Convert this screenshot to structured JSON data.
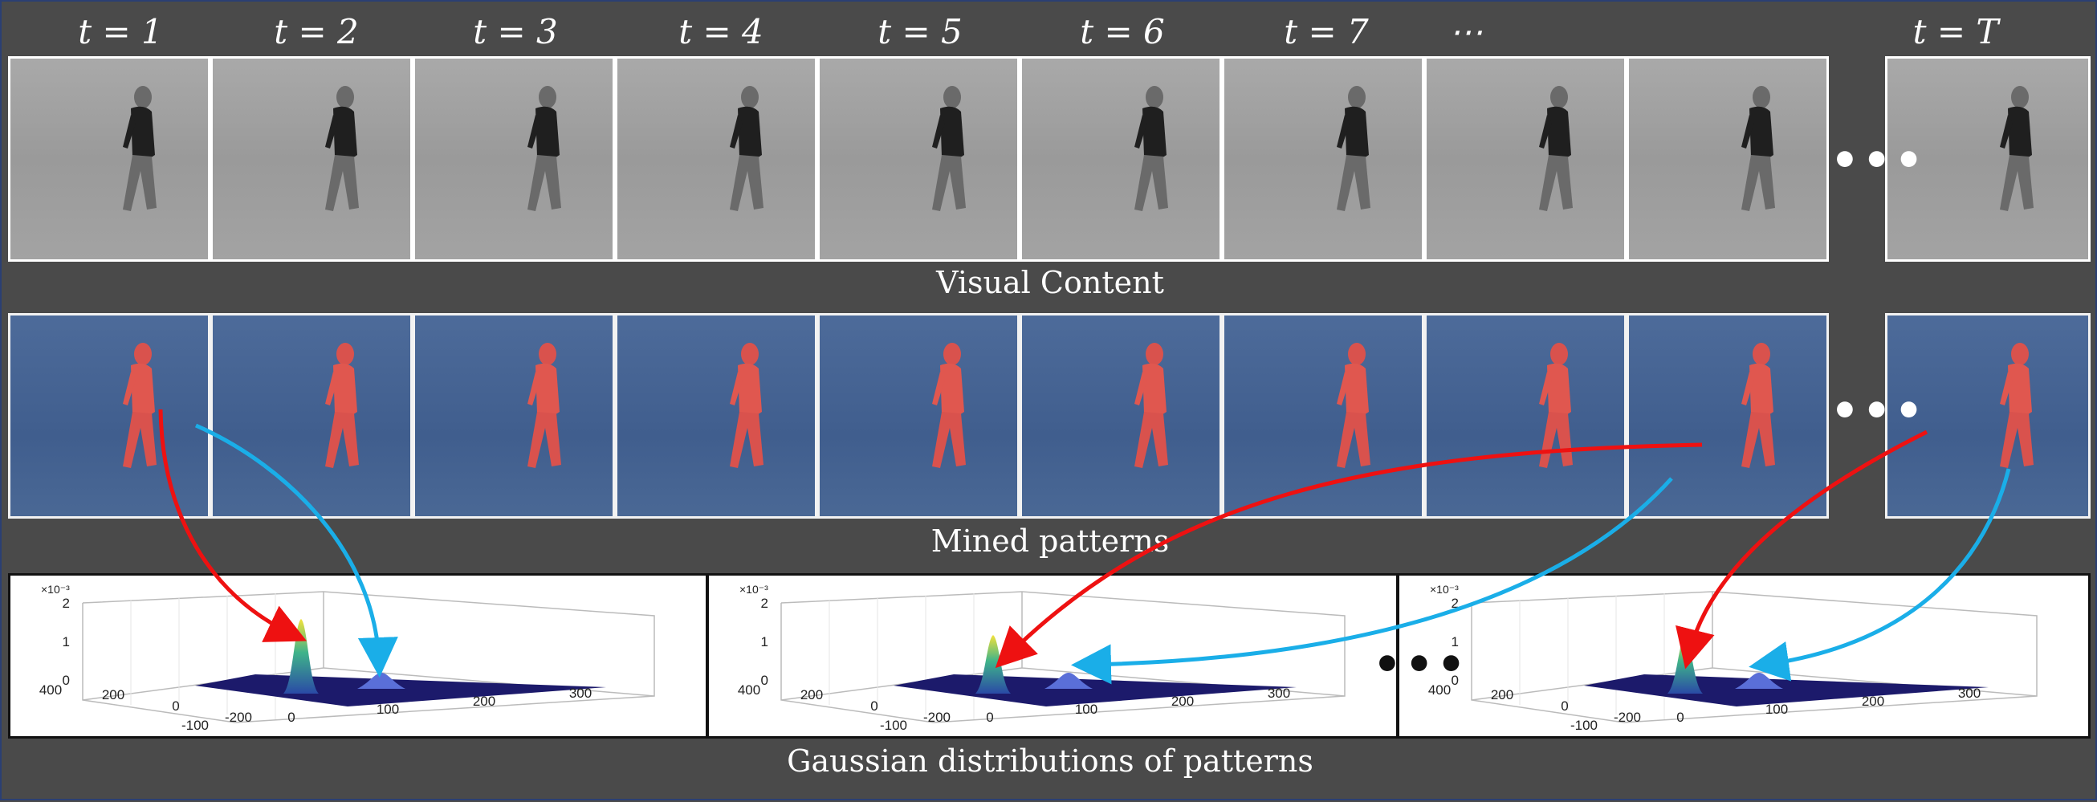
{
  "time_labels": [
    "t = 1",
    "t = 2",
    "t = 3",
    "t = 4",
    "t = 5",
    "t = 6",
    "t = 7",
    "⋯",
    "t = T"
  ],
  "captions": {
    "visual": "Visual Content",
    "mined": "Mined patterns",
    "gaussian": "Gaussian distributions of patterns"
  },
  "ellipsis": "•••",
  "plots": [
    {
      "scale_note": "×10⁻³",
      "z_ticks": [
        "2",
        "1",
        "0"
      ],
      "x_ticks": [
        "400",
        "200",
        "0",
        "-200"
      ],
      "y_ticks": [
        "-100",
        "0",
        "100",
        "200",
        "300"
      ]
    },
    {
      "scale_note": "×10⁻³",
      "z_ticks": [
        "2",
        "1",
        "0"
      ],
      "x_ticks": [
        "400",
        "200",
        "0",
        "-200"
      ],
      "y_ticks": [
        "-100",
        "0",
        "100",
        "200",
        "300"
      ]
    },
    {
      "scale_note": "×10⁻³",
      "z_ticks": [
        "2",
        "1",
        "0"
      ],
      "x_ticks": [
        "400",
        "200",
        "0",
        "-200"
      ],
      "y_ticks": [
        "-100",
        "0",
        "100",
        "200",
        "300"
      ]
    }
  ],
  "colors": {
    "background": "#4a4a4a",
    "pattern_red": "#ee1111",
    "pattern_blue": "#1aaee8",
    "plane": "#1c1a6b",
    "peak_top": "#f3e23a",
    "peak_mid": "#3fb38a",
    "peak_low": "#2a4aa6"
  }
}
